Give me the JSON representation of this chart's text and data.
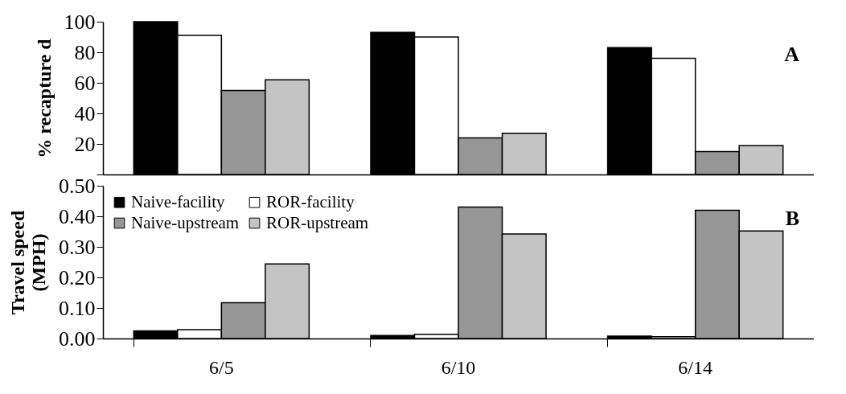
{
  "chart_data": [
    {
      "type": "bar",
      "ylabel": "% recapture d",
      "categories": [
        null,
        null,
        null
      ],
      "series": [
        {
          "color": "#000000",
          "values": [
            100,
            93,
            83
          ]
        },
        {
          "color": "#ffffff",
          "values": [
            91,
            90,
            76
          ]
        },
        {
          "color": "#969696",
          "values": [
            55,
            24,
            15
          ]
        },
        {
          "color": "#c4c4c4",
          "values": [
            62,
            27,
            19
          ]
        }
      ],
      "ylim": [
        0,
        100
      ],
      "yticks": [
        {
          "value": 0,
          "label": null
        },
        20,
        40,
        60,
        80,
        100
      ],
      "tick_labels": "y",
      "annotations": [
        "A"
      ]
    },
    {
      "type": "bar",
      "ylabel": "Travel speed\n(MPH)",
      "categories": [
        "6/5",
        "6/10",
        "6/14"
      ],
      "series": [
        {
          "name": "Naive-facility",
          "color": "#000000",
          "values": [
            0.025,
            0.01,
            0.008
          ]
        },
        {
          "name": "ROR-facility",
          "color": "#ffffff",
          "values": [
            0.029,
            0.014,
            0.006
          ]
        },
        {
          "name": "Naive-upstream",
          "color": "#969696",
          "values": [
            0.117,
            0.43,
            0.42
          ]
        },
        {
          "name": "ROR-upstream",
          "color": "#c4c4c4",
          "values": [
            0.244,
            0.342,
            0.352
          ]
        }
      ],
      "ylim": [
        0,
        0.5
      ],
      "yticks": [
        {
          "value": 0,
          "label": "0.00"
        },
        {
          "value": 0.1,
          "label": "0.10"
        },
        {
          "value": 0.2,
          "label": "0.20"
        },
        {
          "value": 0.3,
          "label": "0.30"
        },
        {
          "value": 0.4,
          "label": "0.40"
        },
        {
          "value": 0.5,
          "label": "0.50"
        }
      ],
      "legend": "top left",
      "annotations": [
        "B"
      ]
    }
  ]
}
